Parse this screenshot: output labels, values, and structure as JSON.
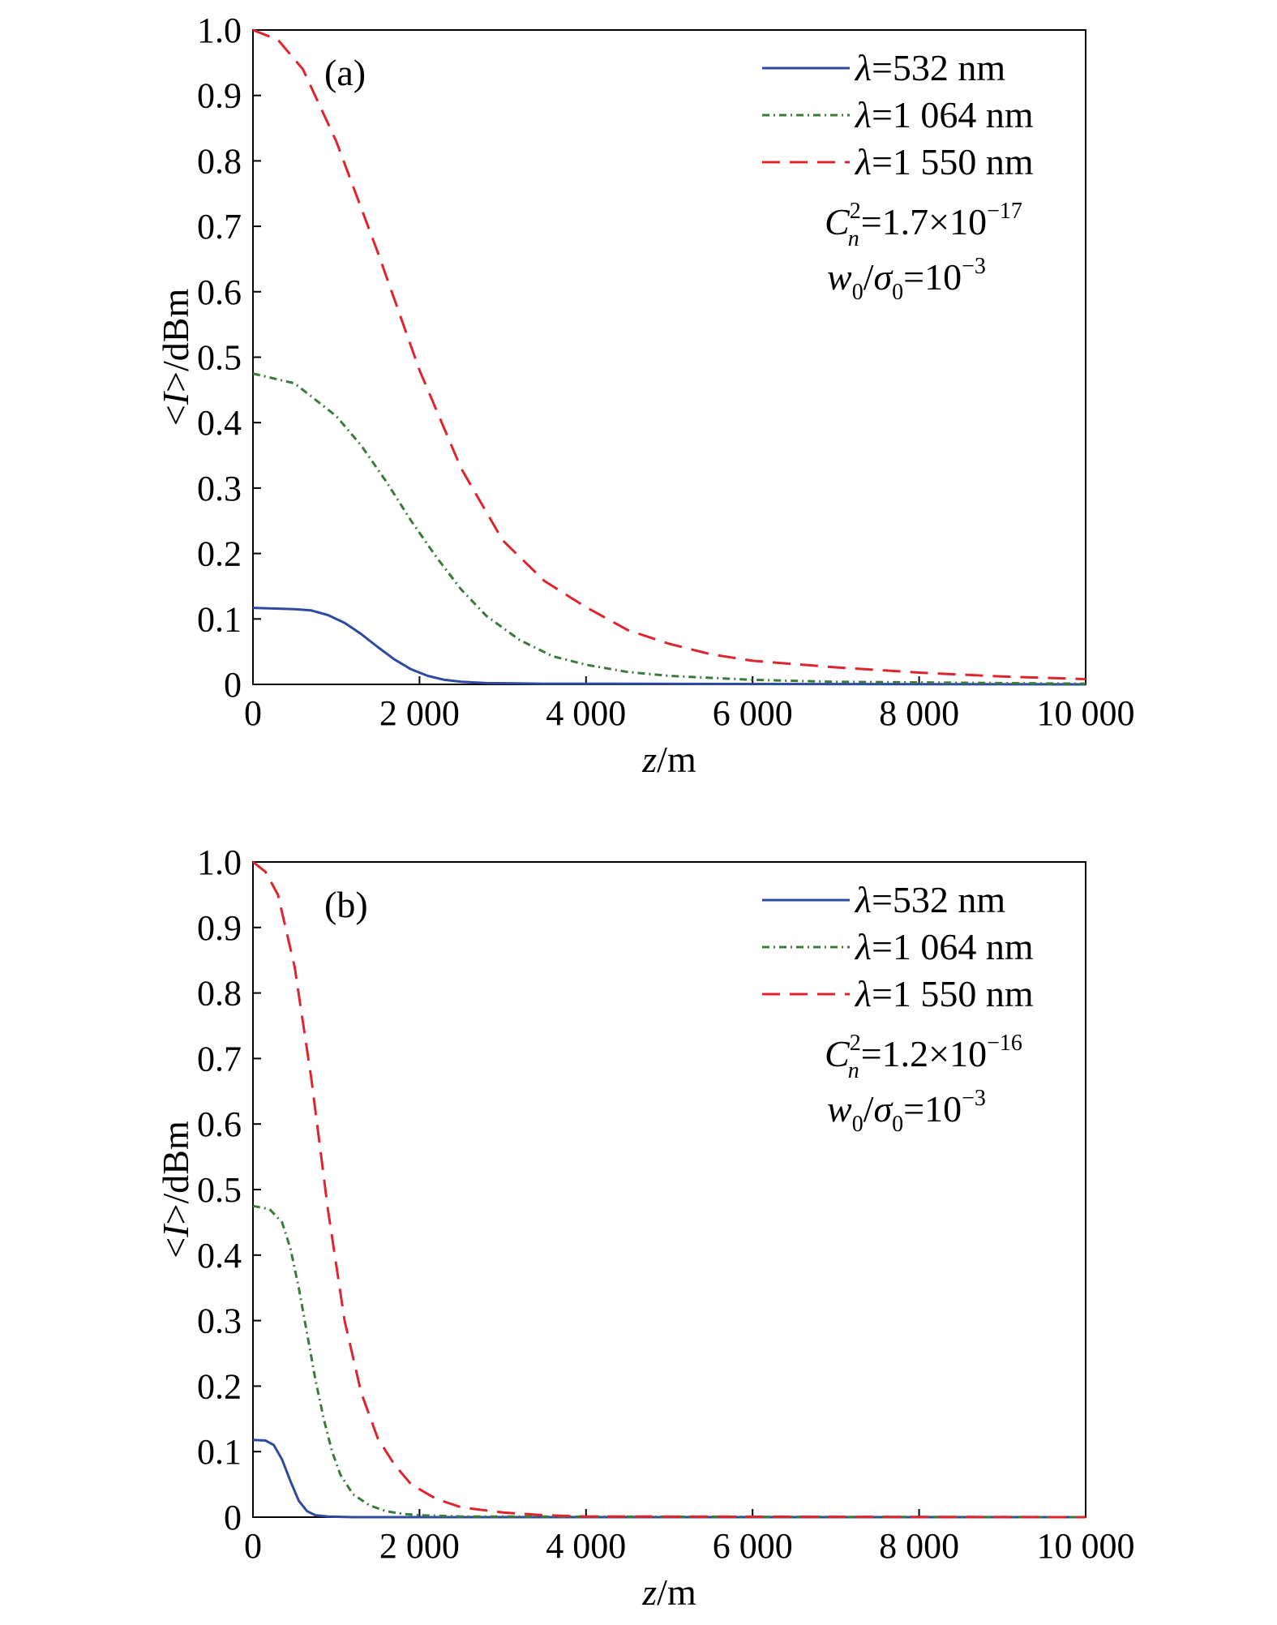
{
  "chart_data": [
    {
      "type": "line",
      "panel_label": "(a)",
      "xlabel_var": "z",
      "xlabel_unit": "/m",
      "ylabel_pre": "<",
      "ylabel_var": "I",
      "ylabel_post": ">/dBm",
      "xlim": [
        0,
        10000
      ],
      "ylim": [
        0,
        1.0
      ],
      "xticks": [
        0,
        2000,
        4000,
        6000,
        8000,
        10000
      ],
      "xtick_labels": [
        "0",
        "2 000",
        "4 000",
        "6 000",
        "8 000",
        "10 000"
      ],
      "yticks": [
        0,
        0.1,
        0.2,
        0.3,
        0.4,
        0.5,
        0.6,
        0.7,
        0.8,
        0.9,
        1.0
      ],
      "ytick_labels": [
        "0",
        "0.1",
        "0.2",
        "0.3",
        "0.4",
        "0.5",
        "0.6",
        "0.7",
        "0.8",
        "0.9",
        "1.0"
      ],
      "grid": false,
      "legend_position": "top-right",
      "annotation_cn": {
        "base": "C",
        "sup": "2",
        "sub": "n",
        "rest": "=1.7×10",
        "exp": "−17"
      },
      "annotation_ratio": {
        "w": "w",
        "w_sub": "0",
        "slash": "/",
        "s": "σ",
        "s_sub": "0",
        "rest": "=10",
        "exp": "−3"
      },
      "series": [
        {
          "name": "λ=532 nm",
          "name_sym": "λ",
          "name_rest": "=532 nm",
          "color": "#2c4aa0",
          "dash": "solid",
          "x": [
            0,
            500,
            700,
            900,
            1100,
            1300,
            1500,
            1700,
            1900,
            2100,
            2300,
            2500,
            2800,
            3500,
            10000
          ],
          "y": [
            0.117,
            0.115,
            0.113,
            0.106,
            0.094,
            0.077,
            0.057,
            0.038,
            0.023,
            0.013,
            0.007,
            0.004,
            0.002,
            0.001,
            0.0
          ]
        },
        {
          "name": "λ=1 064 nm",
          "name_sym": "λ",
          "name_rest": "=1 064 nm",
          "color": "#3a7a3a",
          "dash": "dashdot",
          "x": [
            0,
            500,
            1000,
            1300,
            1600,
            1900,
            2200,
            2500,
            2800,
            3200,
            3600,
            4000,
            4500,
            5000,
            6000,
            7000,
            8000,
            10000
          ],
          "y": [
            0.475,
            0.46,
            0.41,
            0.365,
            0.31,
            0.25,
            0.195,
            0.145,
            0.105,
            0.068,
            0.043,
            0.03,
            0.019,
            0.013,
            0.007,
            0.004,
            0.003,
            0.001
          ]
        },
        {
          "name": "λ=1 550 nm",
          "name_sym": "λ",
          "name_rest": "=1 550 nm",
          "color": "#e0242e",
          "dash": "dashed",
          "x": [
            0,
            300,
            600,
            1000,
            1500,
            2000,
            2500,
            3000,
            3500,
            4000,
            4500,
            5000,
            5500,
            6000,
            7000,
            8000,
            9000,
            10000
          ],
          "y": [
            1.0,
            0.985,
            0.94,
            0.83,
            0.66,
            0.48,
            0.33,
            0.22,
            0.158,
            0.118,
            0.083,
            0.062,
            0.046,
            0.036,
            0.026,
            0.018,
            0.012,
            0.008
          ]
        }
      ]
    },
    {
      "type": "line",
      "panel_label": "(b)",
      "xlabel_var": "z",
      "xlabel_unit": "/m",
      "ylabel_pre": "<",
      "ylabel_var": "I",
      "ylabel_post": ">/dBm",
      "xlim": [
        0,
        10000
      ],
      "ylim": [
        0,
        1.0
      ],
      "xticks": [
        0,
        2000,
        4000,
        6000,
        8000,
        10000
      ],
      "xtick_labels": [
        "0",
        "2 000",
        "4 000",
        "6 000",
        "8 000",
        "10 000"
      ],
      "yticks": [
        0,
        0.1,
        0.2,
        0.3,
        0.4,
        0.5,
        0.6,
        0.7,
        0.8,
        0.9,
        1.0
      ],
      "ytick_labels": [
        "0",
        "0.1",
        "0.2",
        "0.3",
        "0.4",
        "0.5",
        "0.6",
        "0.7",
        "0.8",
        "0.9",
        "1.0"
      ],
      "grid": false,
      "legend_position": "top-right",
      "annotation_cn": {
        "base": "C",
        "sup": "2",
        "sub": "n",
        "rest": "=1.2×10",
        "exp": "−16"
      },
      "annotation_ratio": {
        "w": "w",
        "w_sub": "0",
        "slash": "/",
        "s": "σ",
        "s_sub": "0",
        "rest": "=10",
        "exp": "−3"
      },
      "series": [
        {
          "name": "λ=532 nm",
          "name_sym": "λ",
          "name_rest": "=532 nm",
          "color": "#2c4aa0",
          "dash": "solid",
          "x": [
            0,
            150,
            250,
            350,
            450,
            550,
            650,
            750,
            900,
            1200,
            10000
          ],
          "y": [
            0.118,
            0.117,
            0.11,
            0.088,
            0.055,
            0.025,
            0.009,
            0.003,
            0.001,
            0.0,
            0.0
          ]
        },
        {
          "name": "λ=1 064 nm",
          "name_sym": "λ",
          "name_rest": "=1 064 nm",
          "color": "#3a7a3a",
          "dash": "dashdot",
          "x": [
            0,
            200,
            350,
            450,
            550,
            650,
            750,
            850,
            950,
            1050,
            1200,
            1400,
            1600,
            1800,
            2000,
            2500,
            10000
          ],
          "y": [
            0.475,
            0.47,
            0.45,
            0.41,
            0.35,
            0.28,
            0.21,
            0.15,
            0.1,
            0.065,
            0.035,
            0.018,
            0.009,
            0.005,
            0.003,
            0.001,
            0.0
          ]
        },
        {
          "name": "λ=1 550 nm",
          "name_sym": "λ",
          "name_rest": "=1 550 nm",
          "color": "#e0242e",
          "dash": "dashed",
          "x": [
            0,
            150,
            300,
            500,
            700,
            900,
            1100,
            1300,
            1500,
            1700,
            1900,
            2200,
            2500,
            3000,
            3500,
            4000,
            10000
          ],
          "y": [
            1.0,
            0.985,
            0.95,
            0.84,
            0.67,
            0.47,
            0.3,
            0.19,
            0.12,
            0.08,
            0.05,
            0.028,
            0.015,
            0.007,
            0.003,
            0.001,
            0.0
          ]
        }
      ]
    }
  ]
}
